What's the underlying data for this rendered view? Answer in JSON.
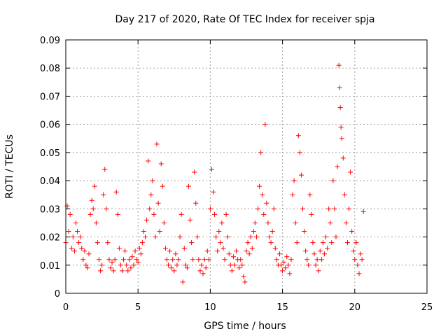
{
  "chart_data": {
    "type": "scatter",
    "title": "Day 217 of 2020, Rate Of TEC Index for receiver spja",
    "xlabel": "GPS time / hours",
    "ylabel": "ROTI / TECUs",
    "xlim": [
      0,
      25
    ],
    "ylim": [
      0,
      0.09
    ],
    "x_ticks": [
      "0",
      "5",
      "10",
      "15",
      "20",
      "25"
    ],
    "y_ticks": [
      "0",
      "0.01",
      "0.02",
      "0.03",
      "0.04",
      "0.05",
      "0.06",
      "0.07",
      "0.08",
      "0.09"
    ],
    "grid": true,
    "marker": "+",
    "series": [
      {
        "color": "#ff0000",
        "points": [
          [
            0.0,
            0.018
          ],
          [
            0.1,
            0.031
          ],
          [
            0.2,
            0.022
          ],
          [
            0.3,
            0.028
          ],
          [
            0.4,
            0.016
          ],
          [
            0.5,
            0.02
          ],
          [
            0.6,
            0.015
          ],
          [
            0.7,
            0.025
          ],
          [
            0.8,
            0.022
          ],
          [
            0.9,
            0.018
          ],
          [
            1.0,
            0.02
          ],
          [
            1.1,
            0.016
          ],
          [
            1.2,
            0.012
          ],
          [
            1.3,
            0.015
          ],
          [
            1.4,
            0.01
          ],
          [
            1.5,
            0.009
          ],
          [
            1.6,
            0.014
          ],
          [
            1.7,
            0.028
          ],
          [
            1.8,
            0.033
          ],
          [
            1.9,
            0.03
          ],
          [
            2.0,
            0.038
          ],
          [
            2.1,
            0.025
          ],
          [
            2.2,
            0.018
          ],
          [
            2.3,
            0.012
          ],
          [
            2.4,
            0.008
          ],
          [
            2.5,
            0.01
          ],
          [
            2.6,
            0.035
          ],
          [
            2.7,
            0.044
          ],
          [
            2.8,
            0.03
          ],
          [
            2.9,
            0.018
          ],
          [
            3.0,
            0.012
          ],
          [
            3.1,
            0.009
          ],
          [
            3.2,
            0.011
          ],
          [
            3.3,
            0.008
          ],
          [
            3.4,
            0.012
          ],
          [
            3.5,
            0.036
          ],
          [
            3.6,
            0.028
          ],
          [
            3.7,
            0.016
          ],
          [
            3.8,
            0.01
          ],
          [
            3.9,
            0.008
          ],
          [
            4.0,
            0.012
          ],
          [
            4.1,
            0.015
          ],
          [
            4.2,
            0.01
          ],
          [
            4.3,
            0.008
          ],
          [
            4.4,
            0.012
          ],
          [
            4.5,
            0.009
          ],
          [
            4.6,
            0.013
          ],
          [
            4.7,
            0.01
          ],
          [
            4.8,
            0.015
          ],
          [
            4.9,
            0.012
          ],
          [
            5.0,
            0.011
          ],
          [
            5.1,
            0.016
          ],
          [
            5.2,
            0.014
          ],
          [
            5.3,
            0.018
          ],
          [
            5.4,
            0.022
          ],
          [
            5.5,
            0.02
          ],
          [
            5.6,
            0.026
          ],
          [
            5.7,
            0.047
          ],
          [
            5.8,
            0.03
          ],
          [
            5.9,
            0.035
          ],
          [
            6.0,
            0.04
          ],
          [
            6.1,
            0.028
          ],
          [
            6.2,
            0.02
          ],
          [
            6.3,
            0.053
          ],
          [
            6.4,
            0.032
          ],
          [
            6.5,
            0.022
          ],
          [
            6.6,
            0.046
          ],
          [
            6.7,
            0.038
          ],
          [
            6.8,
            0.025
          ],
          [
            6.9,
            0.016
          ],
          [
            7.0,
            0.012
          ],
          [
            7.1,
            0.01
          ],
          [
            7.2,
            0.015
          ],
          [
            7.3,
            0.009
          ],
          [
            7.4,
            0.012
          ],
          [
            7.5,
            0.008
          ],
          [
            7.6,
            0.014
          ],
          [
            7.7,
            0.01
          ],
          [
            7.8,
            0.012
          ],
          [
            7.9,
            0.02
          ],
          [
            8.0,
            0.028
          ],
          [
            8.1,
            0.004
          ],
          [
            8.2,
            0.016
          ],
          [
            8.3,
            0.01
          ],
          [
            8.4,
            0.009
          ],
          [
            8.5,
            0.038
          ],
          [
            8.6,
            0.026
          ],
          [
            8.7,
            0.018
          ],
          [
            8.8,
            0.012
          ],
          [
            8.9,
            0.043
          ],
          [
            9.0,
            0.032
          ],
          [
            9.1,
            0.02
          ],
          [
            9.2,
            0.012
          ],
          [
            9.3,
            0.008
          ],
          [
            9.4,
            0.01
          ],
          [
            9.5,
            0.007
          ],
          [
            9.6,
            0.012
          ],
          [
            9.7,
            0.009
          ],
          [
            9.8,
            0.015
          ],
          [
            9.9,
            0.012
          ],
          [
            10.0,
            0.03
          ],
          [
            10.1,
            0.044
          ],
          [
            10.2,
            0.036
          ],
          [
            10.3,
            0.028
          ],
          [
            10.4,
            0.02
          ],
          [
            10.5,
            0.015
          ],
          [
            10.6,
            0.022
          ],
          [
            10.7,
            0.018
          ],
          [
            10.8,
            0.025
          ],
          [
            10.9,
            0.016
          ],
          [
            11.0,
            0.012
          ],
          [
            11.1,
            0.028
          ],
          [
            11.2,
            0.02
          ],
          [
            11.3,
            0.014
          ],
          [
            11.4,
            0.01
          ],
          [
            11.5,
            0.008
          ],
          [
            11.6,
            0.013
          ],
          [
            11.7,
            0.01
          ],
          [
            11.8,
            0.015
          ],
          [
            11.9,
            0.012
          ],
          [
            12.0,
            0.009
          ],
          [
            12.1,
            0.012
          ],
          [
            12.2,
            0.01
          ],
          [
            12.3,
            0.006
          ],
          [
            12.4,
            0.004
          ],
          [
            12.5,
            0.015
          ],
          [
            12.6,
            0.018
          ],
          [
            12.7,
            0.014
          ],
          [
            12.8,
            0.02
          ],
          [
            12.9,
            0.016
          ],
          [
            13.0,
            0.022
          ],
          [
            13.1,
            0.025
          ],
          [
            13.2,
            0.02
          ],
          [
            13.3,
            0.03
          ],
          [
            13.4,
            0.038
          ],
          [
            13.5,
            0.05
          ],
          [
            13.6,
            0.035
          ],
          [
            13.7,
            0.028
          ],
          [
            13.8,
            0.06
          ],
          [
            13.9,
            0.032
          ],
          [
            14.0,
            0.025
          ],
          [
            14.1,
            0.02
          ],
          [
            14.2,
            0.018
          ],
          [
            14.3,
            0.022
          ],
          [
            14.4,
            0.03
          ],
          [
            14.5,
            0.016
          ],
          [
            14.6,
            0.012
          ],
          [
            14.7,
            0.01
          ],
          [
            14.8,
            0.014
          ],
          [
            14.9,
            0.01
          ],
          [
            15.0,
            0.008
          ],
          [
            15.1,
            0.011
          ],
          [
            15.2,
            0.009
          ],
          [
            15.3,
            0.013
          ],
          [
            15.4,
            0.01
          ],
          [
            15.5,
            0.007
          ],
          [
            15.6,
            0.012
          ],
          [
            15.7,
            0.035
          ],
          [
            15.8,
            0.04
          ],
          [
            15.9,
            0.025
          ],
          [
            16.0,
            0.018
          ],
          [
            16.1,
            0.056
          ],
          [
            16.2,
            0.05
          ],
          [
            16.3,
            0.042
          ],
          [
            16.4,
            0.03
          ],
          [
            16.5,
            0.022
          ],
          [
            16.6,
            0.015
          ],
          [
            16.7,
            0.012
          ],
          [
            16.8,
            0.01
          ],
          [
            16.9,
            0.035
          ],
          [
            17.0,
            0.028
          ],
          [
            17.1,
            0.018
          ],
          [
            17.2,
            0.014
          ],
          [
            17.3,
            0.01
          ],
          [
            17.4,
            0.012
          ],
          [
            17.5,
            0.008
          ],
          [
            17.6,
            0.015
          ],
          [
            17.7,
            0.012
          ],
          [
            17.8,
            0.018
          ],
          [
            17.9,
            0.014
          ],
          [
            18.0,
            0.02
          ],
          [
            18.1,
            0.016
          ],
          [
            18.2,
            0.03
          ],
          [
            18.3,
            0.025
          ],
          [
            18.4,
            0.018
          ],
          [
            18.5,
            0.04
          ],
          [
            18.6,
            0.03
          ],
          [
            18.7,
            0.02
          ],
          [
            18.8,
            0.045
          ],
          [
            18.9,
            0.081
          ],
          [
            18.95,
            0.073
          ],
          [
            19.0,
            0.066
          ],
          [
            19.05,
            0.059
          ],
          [
            19.1,
            0.055
          ],
          [
            19.2,
            0.048
          ],
          [
            19.3,
            0.035
          ],
          [
            19.4,
            0.025
          ],
          [
            19.5,
            0.018
          ],
          [
            19.6,
            0.03
          ],
          [
            19.7,
            0.043
          ],
          [
            19.8,
            0.022
          ],
          [
            19.9,
            0.015
          ],
          [
            20.0,
            0.012
          ],
          [
            20.1,
            0.018
          ],
          [
            20.2,
            0.01
          ],
          [
            20.3,
            0.007
          ],
          [
            20.4,
            0.014
          ],
          [
            20.5,
            0.012
          ],
          [
            20.6,
            0.029
          ]
        ]
      }
    ]
  }
}
